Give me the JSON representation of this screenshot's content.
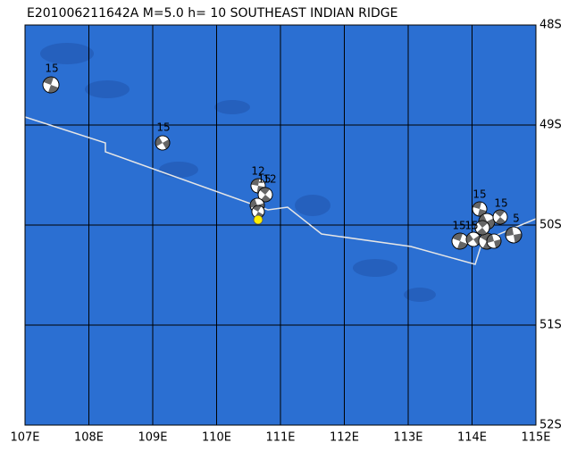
{
  "title": "E201006211642A  M=5.0  h= 10 SOUTHEAST INDIAN RIDGE",
  "map": {
    "longitude_labels": [
      "107E",
      "108E",
      "109E",
      "110E",
      "111E",
      "112E",
      "113E",
      "114E",
      "115E"
    ],
    "latitude_labels": [
      "48S",
      "49S",
      "50S",
      "51S",
      "52S"
    ],
    "event_labels": [
      "15",
      "15",
      "12",
      "15",
      "12",
      "15",
      "15",
      "5",
      "15",
      "15"
    ]
  }
}
